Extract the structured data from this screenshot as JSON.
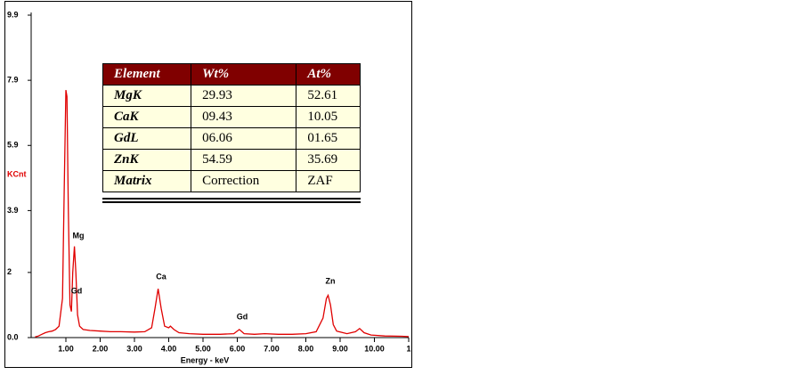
{
  "chart_data": {
    "type": "line",
    "ylabel": "KCnt",
    "xlabel": "Energy - keV",
    "color": "#e00000",
    "xlim": [
      0,
      11
    ],
    "ylim": [
      0,
      9.9
    ],
    "xticks": [
      {
        "value": 1,
        "label": "1.00"
      },
      {
        "value": 2,
        "label": "2.00"
      },
      {
        "value": 3,
        "label": "3.00"
      },
      {
        "value": 4,
        "label": "4.00"
      },
      {
        "value": 5,
        "label": "5.00"
      },
      {
        "value": 6,
        "label": "6.00"
      },
      {
        "value": 7,
        "label": "7.00"
      },
      {
        "value": 8,
        "label": "8.00"
      },
      {
        "value": 9,
        "label": "9.00"
      },
      {
        "value": 10,
        "label": "10.00"
      },
      {
        "value": 11,
        "label": "1"
      }
    ],
    "yticks": [
      {
        "value": 0,
        "label": "0.0"
      },
      2.0,
      3.9,
      5.9,
      7.9,
      9.9
    ],
    "x": [
      0.1,
      0.2,
      0.3,
      0.4,
      0.5,
      0.6,
      0.7,
      0.8,
      0.9,
      0.95,
      1.0,
      1.03,
      1.07,
      1.12,
      1.16,
      1.2,
      1.25,
      1.29,
      1.34,
      1.4,
      1.5,
      1.7,
      2.0,
      2.3,
      2.6,
      3.0,
      3.3,
      3.5,
      3.6,
      3.69,
      3.78,
      3.88,
      4.0,
      4.05,
      4.15,
      4.3,
      4.6,
      5.0,
      5.5,
      5.9,
      6.06,
      6.2,
      6.5,
      6.8,
      7.2,
      7.6,
      8.0,
      8.3,
      8.5,
      8.6,
      8.65,
      8.72,
      8.8,
      8.9,
      9.2,
      9.45,
      9.57,
      9.7,
      9.9,
      10.3,
      10.8,
      11.0
    ],
    "values": [
      0.02,
      0.05,
      0.1,
      0.15,
      0.18,
      0.2,
      0.25,
      0.35,
      1.2,
      4.5,
      7.6,
      7.4,
      4.0,
      1.0,
      0.8,
      2.0,
      2.8,
      2.0,
      0.7,
      0.35,
      0.25,
      0.22,
      0.2,
      0.18,
      0.18,
      0.17,
      0.18,
      0.3,
      0.9,
      1.5,
      0.9,
      0.35,
      0.3,
      0.35,
      0.25,
      0.15,
      0.12,
      0.1,
      0.1,
      0.12,
      0.25,
      0.12,
      0.1,
      0.12,
      0.1,
      0.1,
      0.12,
      0.18,
      0.6,
      1.2,
      1.3,
      1.0,
      0.4,
      0.2,
      0.12,
      0.18,
      0.28,
      0.15,
      0.08,
      0.05,
      0.04,
      0.03
    ],
    "annotations": [
      "Mg",
      "Gd",
      "Ca",
      "Gd",
      "Zn"
    ]
  },
  "table": {
    "header": [
      "Element",
      "Wt%",
      "At%"
    ],
    "rows": [
      [
        "MgK",
        "29.93",
        "52.61"
      ],
      [
        "CaK",
        "09.43",
        "10.05"
      ],
      [
        "GdL",
        "06.06",
        "01.65"
      ],
      [
        "ZnK",
        "54.59",
        "35.69"
      ],
      [
        "Matrix",
        "Correction",
        "ZAF"
      ]
    ]
  }
}
